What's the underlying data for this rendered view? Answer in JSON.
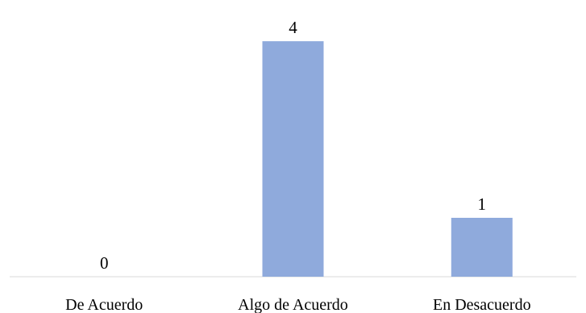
{
  "chart_data": {
    "type": "bar",
    "categories": [
      "De Acuerdo",
      "Algo de Acuerdo",
      "En Desacuerdo"
    ],
    "values": [
      0,
      4,
      1
    ],
    "data_labels": [
      "0",
      "4",
      "1"
    ],
    "title": "",
    "xlabel": "",
    "ylabel": "",
    "ylim": [
      0,
      4.7
    ],
    "grid": false,
    "legend": "none",
    "bar_color": "#8FAADC",
    "axis_color": "#D9D9D9"
  }
}
